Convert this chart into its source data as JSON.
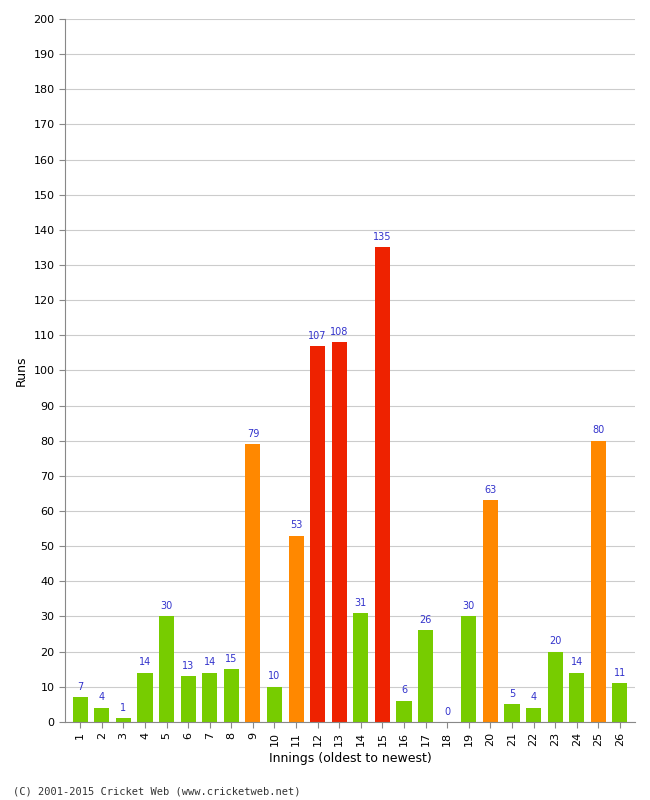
{
  "xlabel": "Innings (oldest to newest)",
  "ylabel": "Runs",
  "footer": "(C) 2001-2015 Cricket Web (www.cricketweb.net)",
  "innings": [
    1,
    2,
    3,
    4,
    5,
    6,
    7,
    8,
    9,
    10,
    11,
    12,
    13,
    14,
    15,
    16,
    17,
    18,
    19,
    20,
    21,
    22,
    23,
    24,
    25,
    26
  ],
  "values": [
    7,
    4,
    1,
    14,
    30,
    13,
    14,
    15,
    79,
    10,
    53,
    107,
    108,
    31,
    135,
    6,
    26,
    0,
    30,
    63,
    5,
    4,
    20,
    14,
    80,
    11
  ],
  "colors": [
    "#77cc00",
    "#77cc00",
    "#77cc00",
    "#77cc00",
    "#77cc00",
    "#77cc00",
    "#77cc00",
    "#77cc00",
    "#ff8800",
    "#77cc00",
    "#ff8800",
    "#ee2200",
    "#ee2200",
    "#77cc00",
    "#ee2200",
    "#77cc00",
    "#77cc00",
    "#77cc00",
    "#77cc00",
    "#ff8800",
    "#77cc00",
    "#77cc00",
    "#77cc00",
    "#77cc00",
    "#ff8800",
    "#77cc00"
  ],
  "ylim": [
    0,
    200
  ],
  "yticks": [
    0,
    10,
    20,
    30,
    40,
    50,
    60,
    70,
    80,
    90,
    100,
    110,
    120,
    130,
    140,
    150,
    160,
    170,
    180,
    190,
    200
  ],
  "bg_color": "#ffffff",
  "grid_color": "#cccccc",
  "label_color": "#3333cc",
  "bar_width": 0.7
}
